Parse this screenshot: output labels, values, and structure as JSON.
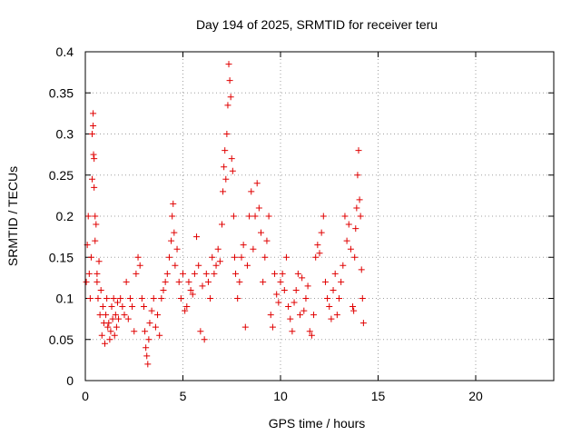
{
  "chart_data": {
    "type": "scatter",
    "title": "Day 194 of 2025, SRMTID for receiver teru",
    "xlabel": "GPS time / hours",
    "ylabel": "SRMTID / TECUs",
    "xlim": [
      0,
      24
    ],
    "ylim": [
      0,
      0.4
    ],
    "xticks": [
      0,
      5,
      10,
      15,
      20
    ],
    "xtick_labels": [
      "0",
      "5",
      "10",
      "15",
      "20"
    ],
    "yticks": [
      0,
      0.05,
      0.1,
      0.15,
      0.2,
      0.25,
      0.3,
      0.35,
      0.4
    ],
    "ytick_labels": [
      "0",
      "0.05",
      "0.1",
      "0.15",
      "0.2",
      "0.25",
      "0.3",
      "0.35",
      "0.4"
    ],
    "grid": true,
    "marker": "+",
    "color": "#e00000",
    "series": [
      {
        "name": "SRMTID",
        "points": [
          [
            0.05,
            0.12
          ],
          [
            0.1,
            0.165
          ],
          [
            0.15,
            0.2
          ],
          [
            0.2,
            0.13
          ],
          [
            0.25,
            0.1
          ],
          [
            0.3,
            0.15
          ],
          [
            0.35,
            0.245
          ],
          [
            0.35,
            0.3
          ],
          [
            0.4,
            0.325
          ],
          [
            0.4,
            0.31
          ],
          [
            0.42,
            0.275
          ],
          [
            0.45,
            0.27
          ],
          [
            0.45,
            0.235
          ],
          [
            0.5,
            0.2
          ],
          [
            0.5,
            0.17
          ],
          [
            0.55,
            0.19
          ],
          [
            0.6,
            0.13
          ],
          [
            0.6,
            0.12
          ],
          [
            0.65,
            0.1
          ],
          [
            0.7,
            0.145
          ],
          [
            0.75,
            0.08
          ],
          [
            0.8,
            0.11
          ],
          [
            0.85,
            0.055
          ],
          [
            0.9,
            0.09
          ],
          [
            0.95,
            0.07
          ],
          [
            1.0,
            0.045
          ],
          [
            1.05,
            0.08
          ],
          [
            1.1,
            0.1
          ],
          [
            1.15,
            0.065
          ],
          [
            1.2,
            0.07
          ],
          [
            1.25,
            0.05
          ],
          [
            1.3,
            0.06
          ],
          [
            1.35,
            0.09
          ],
          [
            1.4,
            0.075
          ],
          [
            1.45,
            0.1
          ],
          [
            1.5,
            0.055
          ],
          [
            1.55,
            0.08
          ],
          [
            1.6,
            0.065
          ],
          [
            1.65,
            0.095
          ],
          [
            1.7,
            0.075
          ],
          [
            1.8,
            0.1
          ],
          [
            1.9,
            0.09
          ],
          [
            2.0,
            0.08
          ],
          [
            2.1,
            0.12
          ],
          [
            2.2,
            0.075
          ],
          [
            2.3,
            0.1
          ],
          [
            2.4,
            0.09
          ],
          [
            2.5,
            0.06
          ],
          [
            2.6,
            0.13
          ],
          [
            2.7,
            0.15
          ],
          [
            2.8,
            0.14
          ],
          [
            2.9,
            0.1
          ],
          [
            3.0,
            0.09
          ],
          [
            3.05,
            0.06
          ],
          [
            3.1,
            0.04
          ],
          [
            3.15,
            0.03
          ],
          [
            3.2,
            0.02
          ],
          [
            3.25,
            0.05
          ],
          [
            3.3,
            0.07
          ],
          [
            3.4,
            0.085
          ],
          [
            3.5,
            0.1
          ],
          [
            3.6,
            0.065
          ],
          [
            3.7,
            0.08
          ],
          [
            3.8,
            0.055
          ],
          [
            3.9,
            0.1
          ],
          [
            4.0,
            0.11
          ],
          [
            4.1,
            0.12
          ],
          [
            4.2,
            0.13
          ],
          [
            4.3,
            0.15
          ],
          [
            4.4,
            0.17
          ],
          [
            4.45,
            0.2
          ],
          [
            4.5,
            0.215
          ],
          [
            4.55,
            0.18
          ],
          [
            4.6,
            0.14
          ],
          [
            4.7,
            0.16
          ],
          [
            4.8,
            0.12
          ],
          [
            4.9,
            0.1
          ],
          [
            5.0,
            0.13
          ],
          [
            5.1,
            0.085
          ],
          [
            5.2,
            0.09
          ],
          [
            5.3,
            0.12
          ],
          [
            5.4,
            0.11
          ],
          [
            5.5,
            0.105
          ],
          [
            5.6,
            0.13
          ],
          [
            5.7,
            0.175
          ],
          [
            5.8,
            0.14
          ],
          [
            5.9,
            0.06
          ],
          [
            6.0,
            0.115
          ],
          [
            6.1,
            0.05
          ],
          [
            6.2,
            0.13
          ],
          [
            6.3,
            0.12
          ],
          [
            6.4,
            0.1
          ],
          [
            6.5,
            0.15
          ],
          [
            6.6,
            0.13
          ],
          [
            6.7,
            0.14
          ],
          [
            6.8,
            0.16
          ],
          [
            6.9,
            0.145
          ],
          [
            7.0,
            0.19
          ],
          [
            7.05,
            0.23
          ],
          [
            7.1,
            0.26
          ],
          [
            7.15,
            0.28
          ],
          [
            7.2,
            0.245
          ],
          [
            7.25,
            0.3
          ],
          [
            7.3,
            0.335
          ],
          [
            7.35,
            0.385
          ],
          [
            7.4,
            0.365
          ],
          [
            7.45,
            0.345
          ],
          [
            7.5,
            0.27
          ],
          [
            7.55,
            0.255
          ],
          [
            7.6,
            0.2
          ],
          [
            7.65,
            0.15
          ],
          [
            7.7,
            0.13
          ],
          [
            7.8,
            0.1
          ],
          [
            7.9,
            0.12
          ],
          [
            8.0,
            0.15
          ],
          [
            8.1,
            0.165
          ],
          [
            8.2,
            0.065
          ],
          [
            8.3,
            0.14
          ],
          [
            8.4,
            0.2
          ],
          [
            8.5,
            0.23
          ],
          [
            8.6,
            0.16
          ],
          [
            8.7,
            0.2
          ],
          [
            8.8,
            0.24
          ],
          [
            8.9,
            0.21
          ],
          [
            9.0,
            0.18
          ],
          [
            9.1,
            0.12
          ],
          [
            9.2,
            0.15
          ],
          [
            9.3,
            0.17
          ],
          [
            9.4,
            0.2
          ],
          [
            9.5,
            0.08
          ],
          [
            9.6,
            0.065
          ],
          [
            9.7,
            0.13
          ],
          [
            9.8,
            0.105
          ],
          [
            9.9,
            0.095
          ],
          [
            10.0,
            0.12
          ],
          [
            10.1,
            0.13
          ],
          [
            10.2,
            0.11
          ],
          [
            10.3,
            0.15
          ],
          [
            10.4,
            0.09
          ],
          [
            10.5,
            0.075
          ],
          [
            10.6,
            0.06
          ],
          [
            10.7,
            0.095
          ],
          [
            10.8,
            0.11
          ],
          [
            10.9,
            0.13
          ],
          [
            11.0,
            0.08
          ],
          [
            11.1,
            0.125
          ],
          [
            11.2,
            0.085
          ],
          [
            11.3,
            0.1
          ],
          [
            11.4,
            0.115
          ],
          [
            11.5,
            0.06
          ],
          [
            11.6,
            0.055
          ],
          [
            11.7,
            0.08
          ],
          [
            11.8,
            0.15
          ],
          [
            11.9,
            0.165
          ],
          [
            12.0,
            0.155
          ],
          [
            12.1,
            0.18
          ],
          [
            12.2,
            0.2
          ],
          [
            12.3,
            0.12
          ],
          [
            12.4,
            0.1
          ],
          [
            12.5,
            0.09
          ],
          [
            12.6,
            0.075
          ],
          [
            12.7,
            0.11
          ],
          [
            12.8,
            0.13
          ],
          [
            12.9,
            0.08
          ],
          [
            13.0,
            0.1
          ],
          [
            13.1,
            0.12
          ],
          [
            13.2,
            0.14
          ],
          [
            13.3,
            0.2
          ],
          [
            13.4,
            0.17
          ],
          [
            13.5,
            0.19
          ],
          [
            13.6,
            0.16
          ],
          [
            13.7,
            0.09
          ],
          [
            13.75,
            0.085
          ],
          [
            13.8,
            0.15
          ],
          [
            13.85,
            0.185
          ],
          [
            13.9,
            0.21
          ],
          [
            13.95,
            0.25
          ],
          [
            14.0,
            0.28
          ],
          [
            14.05,
            0.22
          ],
          [
            14.1,
            0.2
          ],
          [
            14.15,
            0.135
          ],
          [
            14.2,
            0.1
          ],
          [
            14.25,
            0.07
          ]
        ]
      }
    ]
  }
}
